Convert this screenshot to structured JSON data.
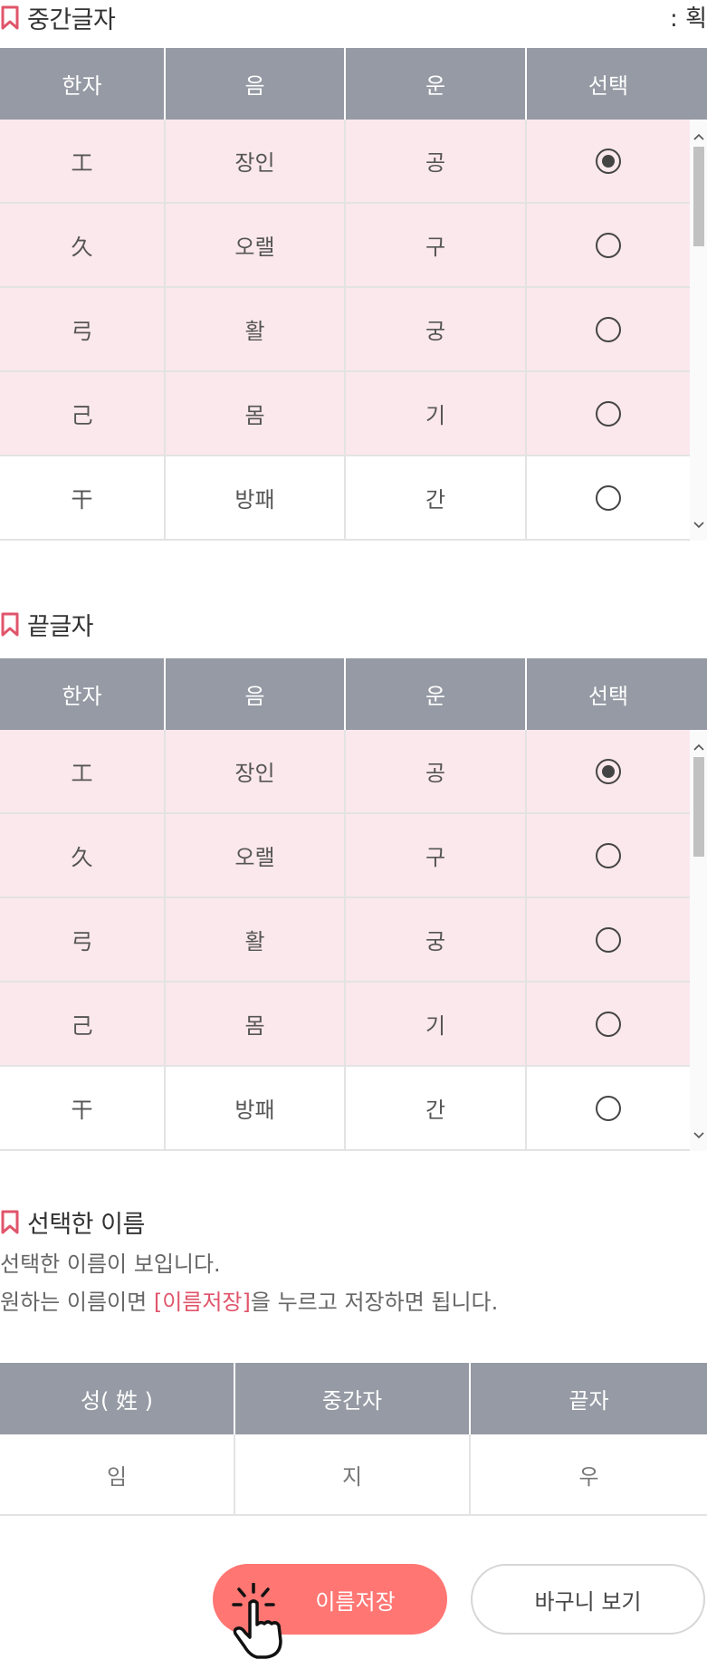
{
  "middle": {
    "title": "중간글자",
    "right_note": ": 획",
    "headers": [
      "한자",
      "음",
      "운",
      "선택"
    ],
    "rows": [
      {
        "hanja": "工",
        "eum": "장인",
        "un": "공",
        "selected": true
      },
      {
        "hanja": "久",
        "eum": "오랠",
        "un": "구",
        "selected": false
      },
      {
        "hanja": "弓",
        "eum": "활",
        "un": "궁",
        "selected": false
      },
      {
        "hanja": "己",
        "eum": "몸",
        "un": "기",
        "selected": false
      },
      {
        "hanja": "干",
        "eum": "방패",
        "un": "간",
        "selected": false
      }
    ]
  },
  "last": {
    "title": "끝글자",
    "headers": [
      "한자",
      "음",
      "운",
      "선택"
    ],
    "rows": [
      {
        "hanja": "工",
        "eum": "장인",
        "un": "공",
        "selected": true
      },
      {
        "hanja": "久",
        "eum": "오랠",
        "un": "구",
        "selected": false
      },
      {
        "hanja": "弓",
        "eum": "활",
        "un": "궁",
        "selected": false
      },
      {
        "hanja": "己",
        "eum": "몸",
        "un": "기",
        "selected": false
      },
      {
        "hanja": "干",
        "eum": "방패",
        "un": "간",
        "selected": false
      }
    ]
  },
  "selected_name": {
    "title": "선택한 이름",
    "line1": "선택한 이름이 보입니다.",
    "line2_pre": "원하는 이름이면 ",
    "line2_hl": "[이름저장]",
    "line2_post": "을 누르고 저장하면 됩니다.",
    "headers": [
      "성( 姓 )",
      "중간자",
      "끝자"
    ],
    "values": [
      "임",
      "지",
      "우"
    ]
  },
  "buttons": {
    "save": "이름저장",
    "cart": "바구니 보기"
  },
  "colors": {
    "accent": "#ff7673",
    "header_bg": "#959aa4",
    "row_pink": "#fbe8ec",
    "highlight": "#e0556b"
  },
  "icons": {
    "bookmark": "bookmark-icon",
    "hand": "hand-pointer-icon",
    "scroll_up": "chevron-up-icon",
    "scroll_down": "chevron-down-icon"
  }
}
